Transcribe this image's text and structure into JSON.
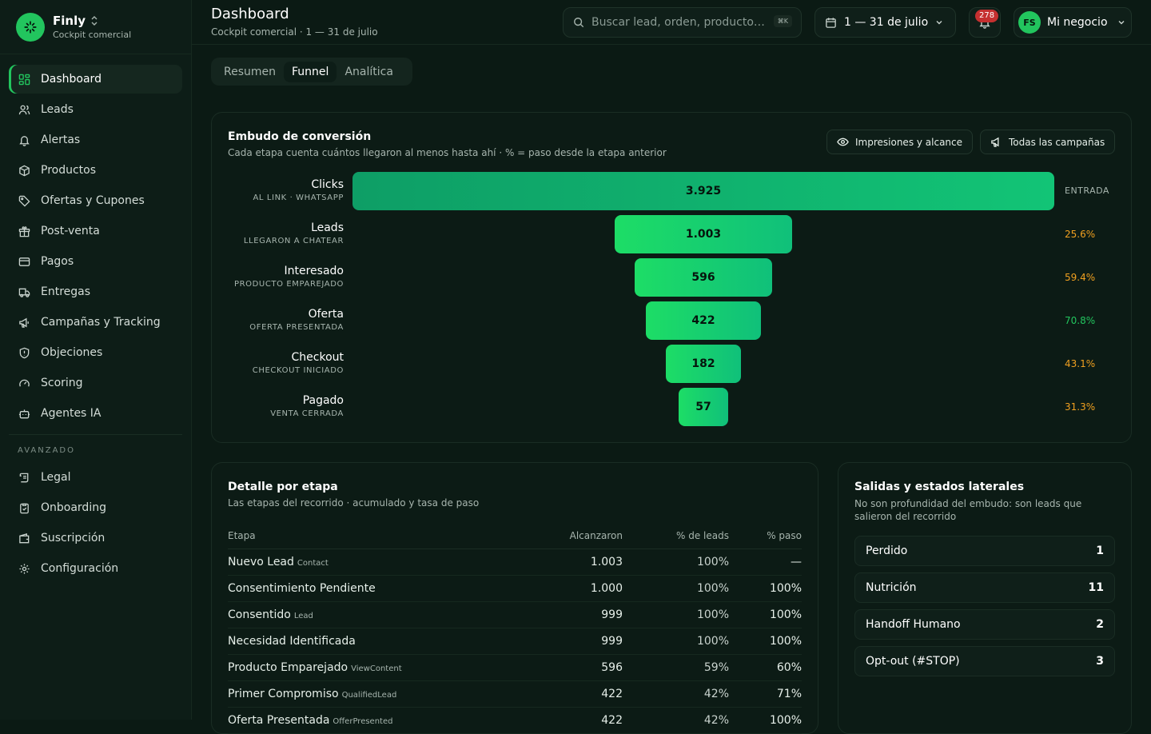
{
  "brand": {
    "name": "Finly",
    "subtitle": "Cockpit comercial"
  },
  "sidebar": {
    "items": [
      {
        "label": "Dashboard",
        "icon": "grid-icon",
        "active": true
      },
      {
        "label": "Leads",
        "icon": "users-icon"
      },
      {
        "label": "Alertas",
        "icon": "bell-icon"
      },
      {
        "label": "Productos",
        "icon": "box-icon"
      },
      {
        "label": "Ofertas y Cupones",
        "icon": "tag-icon"
      },
      {
        "label": "Post-venta",
        "icon": "gift-icon"
      },
      {
        "label": "Pagos",
        "icon": "card-icon"
      },
      {
        "label": "Entregas",
        "icon": "truck-icon"
      },
      {
        "label": "Campañas y Tracking",
        "icon": "megaphone-icon"
      },
      {
        "label": "Objeciones",
        "icon": "shield-icon"
      },
      {
        "label": "Scoring",
        "icon": "gauge-icon"
      },
      {
        "label": "Agentes IA",
        "icon": "bot-icon"
      }
    ],
    "section_label": "AVANZADO",
    "advanced_items": [
      {
        "label": "Legal",
        "icon": "scroll-icon"
      },
      {
        "label": "Onboarding",
        "icon": "clipboard-icon"
      },
      {
        "label": "Suscripción",
        "icon": "wallet-icon"
      },
      {
        "label": "Configuración",
        "icon": "gear-icon"
      }
    ]
  },
  "header": {
    "title": "Dashboard",
    "subtitle": "Cockpit comercial · 1 — 31 de julio",
    "search_placeholder": "Buscar lead, orden, producto…",
    "search_shortcut": "⌘K",
    "date_range": "1 — 31 de julio",
    "notifications": "278",
    "user_initials": "FS",
    "user_name": "Mi negocio"
  },
  "tabs": [
    {
      "label": "Resumen"
    },
    {
      "label": "Funnel",
      "active": true
    },
    {
      "label": "Analítica"
    }
  ],
  "funnel": {
    "title": "Embudo de conversión",
    "subtitle": "Cada etapa cuenta cuántos llegaron al menos hasta ahí · % = paso desde la etapa anterior",
    "filter_reach": "Impresiones y alcance",
    "filter_campaigns": "Todas las campañas",
    "stages": [
      {
        "name": "Clicks",
        "desc": "AL LINK · WHATSAPP",
        "value": 3925,
        "display": "3.925",
        "rate": "ENTRADA",
        "rate_type": "entry"
      },
      {
        "name": "Leads",
        "desc": "LLEGARON A CHATEAR",
        "value": 1003,
        "display": "1.003",
        "rate": "25.6%",
        "rate_type": "warn"
      },
      {
        "name": "Interesado",
        "desc": "PRODUCTO EMPAREJADO",
        "value": 596,
        "display": "596",
        "rate": "59.4%",
        "rate_type": "warn"
      },
      {
        "name": "Oferta",
        "desc": "OFERTA PRESENTADA",
        "value": 422,
        "display": "422",
        "rate": "70.8%",
        "rate_type": "good"
      },
      {
        "name": "Checkout",
        "desc": "CHECKOUT INICIADO",
        "value": 182,
        "display": "182",
        "rate": "43.1%",
        "rate_type": "warn"
      },
      {
        "name": "Pagado",
        "desc": "VENTA CERRADA",
        "value": 57,
        "display": "57",
        "rate": "31.3%",
        "rate_type": "warn"
      }
    ]
  },
  "detail": {
    "title": "Detalle por etapa",
    "subtitle": "Las etapas del recorrido · acumulado y tasa de paso",
    "columns": [
      "Etapa",
      "Alcanzaron",
      "% de leads",
      "% paso"
    ],
    "rows": [
      {
        "stage": "Nuevo Lead",
        "tag": "Contact",
        "reached": "1.003",
        "pct_leads": "100%",
        "pct_step": "—",
        "step_type": "none"
      },
      {
        "stage": "Consentimiento Pendiente",
        "tag": "",
        "reached": "1.000",
        "pct_leads": "100%",
        "pct_step": "100%",
        "step_type": "good"
      },
      {
        "stage": "Consentido",
        "tag": "Lead",
        "reached": "999",
        "pct_leads": "100%",
        "pct_step": "100%",
        "step_type": "good"
      },
      {
        "stage": "Necesidad Identificada",
        "tag": "",
        "reached": "999",
        "pct_leads": "100%",
        "pct_step": "100%",
        "step_type": "good"
      },
      {
        "stage": "Producto Emparejado",
        "tag": "ViewContent",
        "reached": "596",
        "pct_leads": "59%",
        "pct_step": "60%",
        "step_type": "warn"
      },
      {
        "stage": "Primer Compromiso",
        "tag": "QualifiedLead",
        "reached": "422",
        "pct_leads": "42%",
        "pct_step": "71%",
        "step_type": "good"
      },
      {
        "stage": "Oferta Presentada",
        "tag": "OfferPresented",
        "reached": "422",
        "pct_leads": "42%",
        "pct_step": "100%",
        "step_type": "good"
      }
    ]
  },
  "exits": {
    "title": "Salidas y estados laterales",
    "subtitle": "No son profundidad del embudo: son leads que salieron del recorrido",
    "items": [
      {
        "label": "Perdido",
        "count": "1"
      },
      {
        "label": "Nutrición",
        "count": "11"
      },
      {
        "label": "Handoff Humano",
        "count": "2"
      },
      {
        "label": "Opt-out (#STOP)",
        "count": "3"
      }
    ]
  },
  "colors": {
    "accent": "#22c55e",
    "warn": "#f0a020",
    "background": "#0b1a14",
    "badge": "#c53030"
  }
}
